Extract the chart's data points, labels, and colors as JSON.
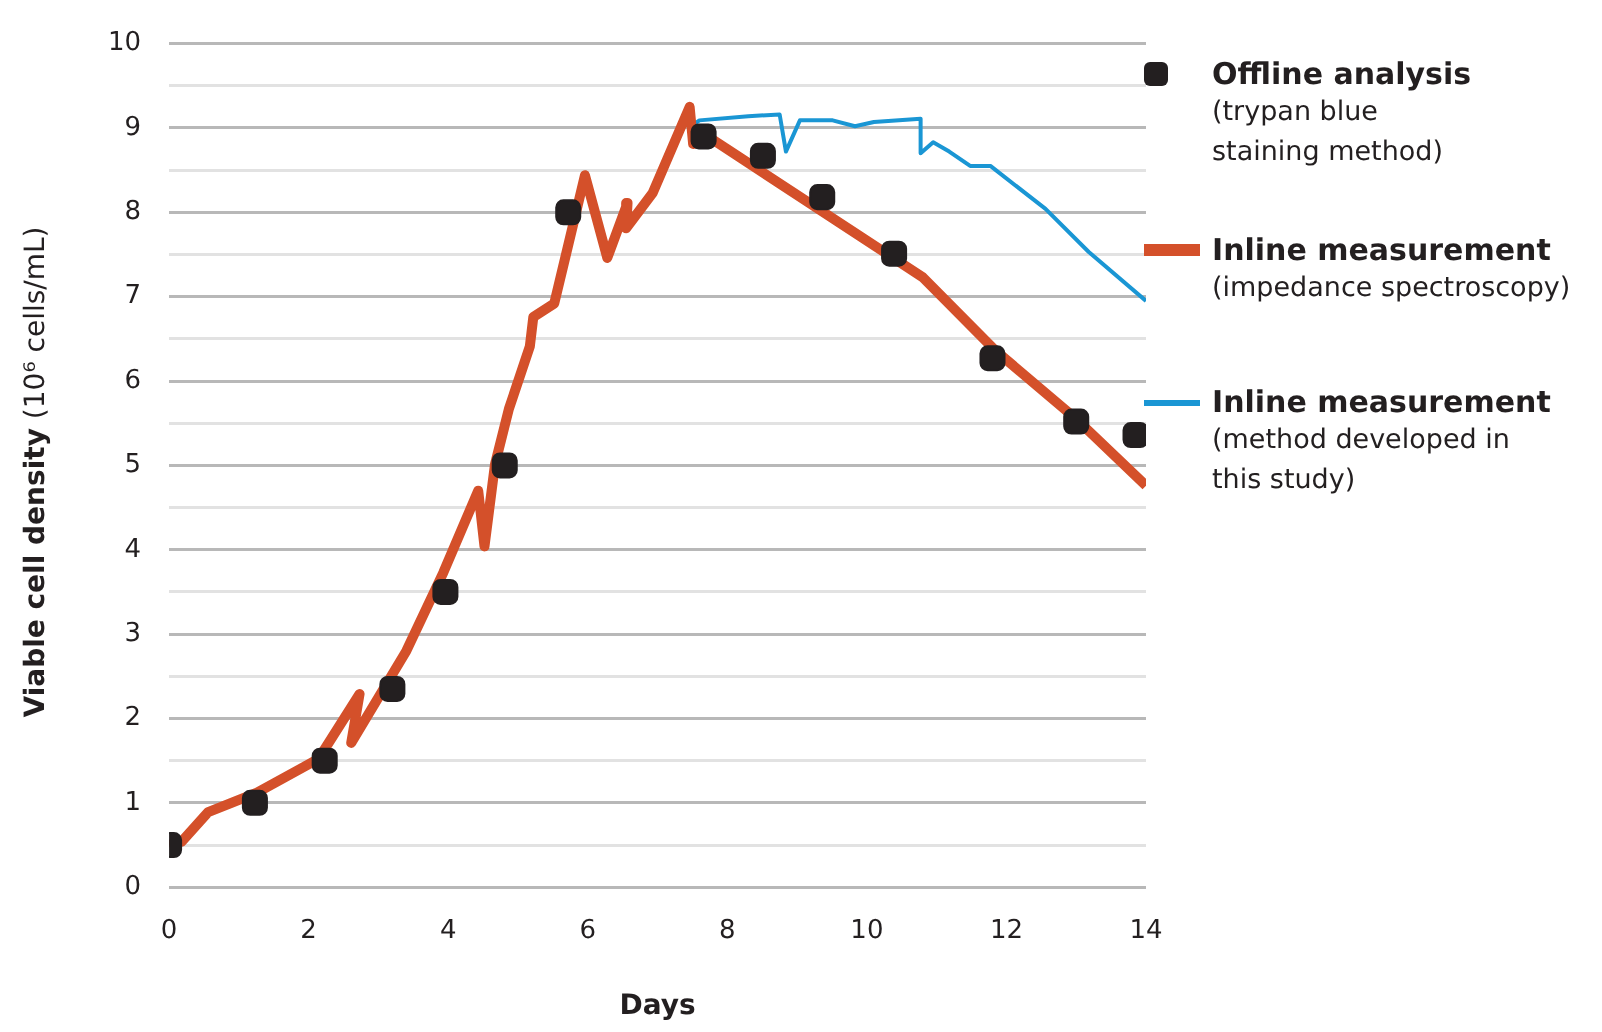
{
  "chart_data": {
    "type": "line",
    "xlabel": "Days",
    "ylabel": "Viable cell density (10⁶ cells/mL)",
    "xlim": [
      0,
      14
    ],
    "xticks": [
      0,
      2,
      4,
      6,
      8,
      10,
      12,
      14
    ],
    "ylim": [
      0,
      10
    ],
    "yticks": [
      0,
      {
        "value": 0.5,
        "label": null
      },
      1,
      {
        "value": 1.5,
        "label": null
      },
      2,
      {
        "value": 2.5,
        "label": null
      },
      3,
      {
        "value": 3.5,
        "label": null
      },
      4,
      {
        "value": 4.5,
        "label": null
      },
      5,
      {
        "value": 5.5,
        "label": null
      },
      6,
      {
        "value": 6.5,
        "label": null
      },
      7,
      {
        "value": 7.5,
        "label": null
      },
      8,
      {
        "value": 8.5,
        "label": null
      },
      9,
      {
        "value": 9.5,
        "label": null
      },
      10
    ],
    "grid": "y",
    "legend": "right",
    "line_style": "solid",
    "series": [
      {
        "name": "Offline analysis (trypan blue staining method)",
        "type": "scatter",
        "marker": "square",
        "color": "#231f20",
        "x": [
          0,
          1.23,
          2.23,
          3.2,
          3.96,
          4.81,
          5.72,
          7.66,
          8.51,
          9.36,
          10.39,
          11.8,
          13.0,
          13.85
        ],
        "values": [
          0.5,
          1.0,
          1.5,
          2.35,
          3.5,
          5.0,
          8.0,
          8.9,
          8.67,
          8.18,
          7.51,
          6.27,
          5.52,
          5.36
        ]
      },
      {
        "name": "Inline measurement (impedance spectroscopy)",
        "type": "line",
        "marker": "none",
        "color": "#d4502a",
        "x": [
          0,
          0.18,
          0.56,
          1.26,
          2.14,
          2.73,
          2.61,
          3.4,
          3.93,
          4.43,
          4.52,
          4.67,
          4.87,
          5.17,
          5.22,
          5.52,
          5.96,
          6.28,
          6.57,
          6.55,
          6.93,
          7.46,
          7.51,
          7.72,
          10.8,
          11.83,
          13.0,
          14.0
        ],
        "values": [
          0.5,
          0.54,
          0.89,
          1.12,
          1.52,
          2.29,
          1.71,
          2.8,
          3.73,
          4.7,
          4.04,
          5.01,
          5.67,
          6.41,
          6.76,
          6.92,
          8.44,
          7.46,
          8.11,
          7.81,
          8.23,
          9.25,
          8.81,
          8.9,
          7.23,
          6.37,
          5.55,
          4.76
        ]
      },
      {
        "name": "Inline measurement (method developed in this study)",
        "type": "line",
        "marker": "none",
        "color": "#1a96d4",
        "x": [
          7.46,
          7.6,
          8.3,
          8.75,
          8.84,
          9.04,
          9.51,
          9.83,
          10.1,
          10.77,
          10.77,
          10.95,
          11.18,
          11.48,
          11.77,
          12.56,
          13.18,
          14.0
        ],
        "values": [
          9.01,
          9.09,
          9.14,
          9.16,
          8.72,
          9.09,
          9.09,
          9.02,
          9.07,
          9.11,
          8.7,
          8.83,
          8.72,
          8.55,
          8.55,
          8.04,
          7.53,
          6.95
        ]
      }
    ]
  }
}
